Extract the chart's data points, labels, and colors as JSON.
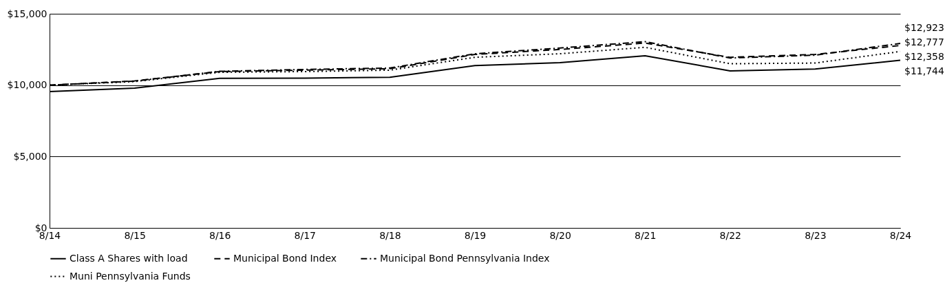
{
  "chart_data": {
    "type": "line",
    "categories": [
      "8/14",
      "8/15",
      "8/16",
      "8/17",
      "8/18",
      "8/19",
      "8/20",
      "8/21",
      "8/22",
      "8/23",
      "8/24"
    ],
    "ylim": [
      0,
      15000
    ],
    "yticks": [
      {
        "value": 0,
        "label": "$0"
      },
      {
        "value": 5000,
        "label": "$5,000"
      },
      {
        "value": 10000,
        "label": "$10,000"
      },
      {
        "value": 15000,
        "label": "$15,000"
      }
    ],
    "grid": "y",
    "legend": "bottom",
    "marker": "none",
    "series": [
      {
        "name": "Class A Shares with load",
        "color": "#000000",
        "line_style": "solid",
        "values": [
          9550,
          9790,
          10480,
          10490,
          10550,
          11370,
          11580,
          12060,
          11000,
          11130,
          11744
        ],
        "value_labels": [
          null,
          null,
          null,
          null,
          null,
          null,
          null,
          null,
          null,
          null,
          "$11,744"
        ]
      },
      {
        "name": "Municipal Bond Index",
        "color": "#000000",
        "line_style": "dashed",
        "values": [
          10000,
          10300,
          10950,
          11050,
          11150,
          12150,
          12500,
          12950,
          11950,
          12150,
          12777
        ],
        "value_labels": [
          null,
          null,
          null,
          null,
          null,
          null,
          null,
          null,
          null,
          null,
          "$12,777"
        ]
      },
      {
        "name": "Municipal Bond Pennsylvania Index",
        "color": "#000000",
        "line_style": "dashdot",
        "values": [
          10000,
          10280,
          10970,
          11100,
          11200,
          12200,
          12600,
          13050,
          11900,
          12100,
          12923
        ],
        "value_labels": [
          null,
          null,
          null,
          null,
          null,
          null,
          null,
          null,
          null,
          null,
          "$12,923"
        ]
      },
      {
        "name": "Muni Pennsylvania Funds",
        "color": "#000000",
        "line_style": "dotted",
        "values": [
          10000,
          10250,
          10900,
          10950,
          11050,
          11950,
          12200,
          12650,
          11500,
          11550,
          12358
        ],
        "value_labels": [
          null,
          null,
          null,
          null,
          null,
          null,
          null,
          null,
          null,
          null,
          "$12,358"
        ]
      }
    ]
  }
}
